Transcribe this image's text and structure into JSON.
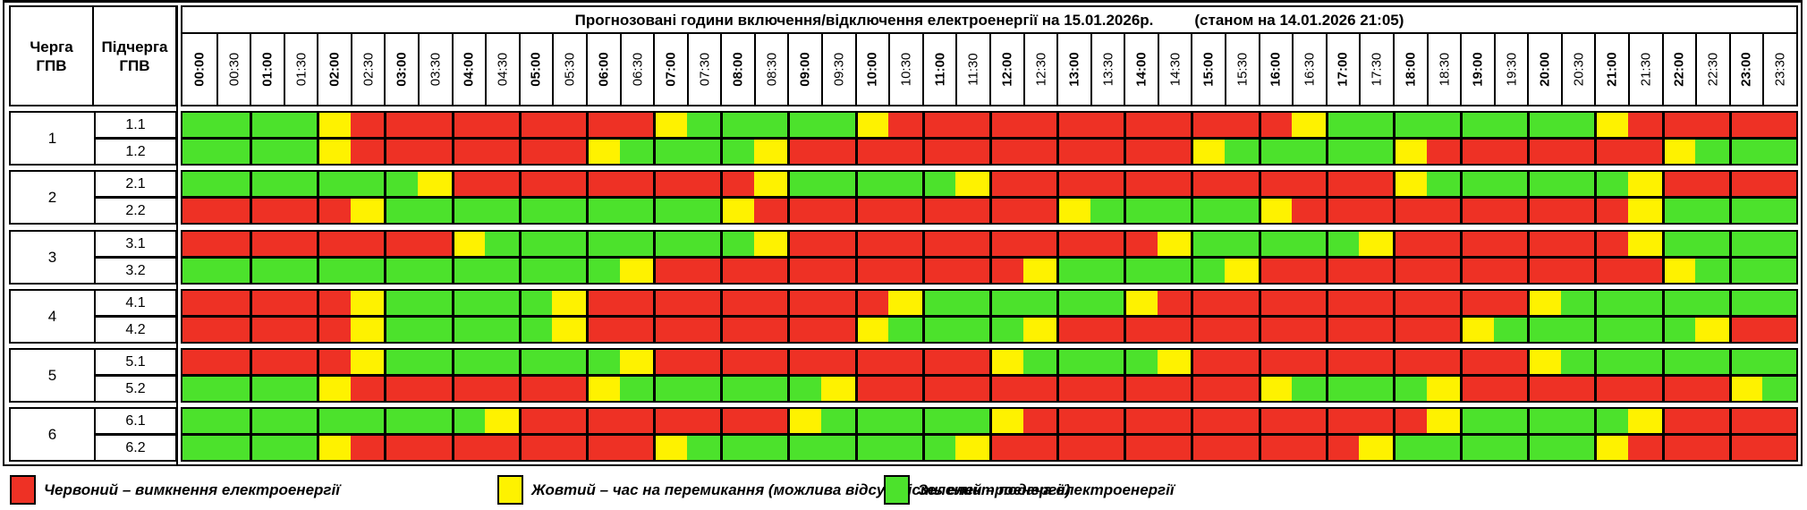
{
  "header": {
    "title": "Прогнозовані години включення/відключення електроенергії на 15.01.2026р.",
    "as_of": "(станом на 14.01.2026 21:05)",
    "queue_col": "Черга\nГПВ",
    "subqueue_col": "Підчерга\nГПВ"
  },
  "times": [
    "00:00",
    "00:30",
    "01:00",
    "01:30",
    "02:00",
    "02:30",
    "03:00",
    "03:30",
    "04:00",
    "04:30",
    "05:00",
    "05:30",
    "06:00",
    "06:30",
    "07:00",
    "07:30",
    "08:00",
    "08:30",
    "09:00",
    "09:30",
    "10:00",
    "10:30",
    "11:00",
    "11:30",
    "12:00",
    "12:30",
    "13:00",
    "13:30",
    "14:00",
    "14:30",
    "15:00",
    "15:30",
    "16:00",
    "16:30",
    "17:00",
    "17:30",
    "18:00",
    "18:30",
    "19:00",
    "19:30",
    "20:00",
    "20:30",
    "21:00",
    "21:30",
    "22:00",
    "22:30",
    "23:00",
    "23:30"
  ],
  "cell_colors": {
    "R": "#ee3125",
    "Y": "#fef200",
    "G": "#4ce22c"
  },
  "groups": [
    {
      "queue": "1",
      "rows": [
        {
          "label": "1.1",
          "cells": "GGGGYRRRRRRRRRYGGGGGYRRRRRRRRRRRRYGGGGGGGGYRRRRR"
        },
        {
          "label": "1.2",
          "cells": "GGGGYRRRRRRRYGGGGYRRRRRRRRRRRRYGGGGGYRRRRRRRYGGG"
        }
      ]
    },
    {
      "queue": "2",
      "rows": [
        {
          "label": "2.1",
          "cells": "GGGGGGGYRRRRRRRRRYGGGGGYRRRRRRRRRRRRYGGGGGGYRRRR"
        },
        {
          "label": "2.2",
          "cells": "RRRRRYGGGGGGGGGGYRRRRRRRRRYGGGGGYRRRRRRRRRRYGGGG"
        }
      ]
    },
    {
      "queue": "3",
      "rows": [
        {
          "label": "3.1",
          "cells": "RRRRRRRRYGGGGGGGGYRRRRRRRRRRRYGGGGGYRRRRRRRYGGGG"
        },
        {
          "label": "3.2",
          "cells": "GGGGGGGGGGGGGYRRRRRRRRRRRYGGGGGYRRRRRRRRRRRRYGGG"
        }
      ]
    },
    {
      "queue": "4",
      "rows": [
        {
          "label": "4.1",
          "cells": "RRRRRYGGGGGYRRRRRRRRRYGGGGGGYRRRRRRRRRRRYGGGGGGG"
        },
        {
          "label": "4.2",
          "cells": "RRRRRYGGGGGYRRRRRRRRYGGGGYRRRRRRRRRRRRYGGGGGGYRR"
        }
      ]
    },
    {
      "queue": "5",
      "rows": [
        {
          "label": "5.1",
          "cells": "RRRRRYGGGGGGGYRRRRRRRRRRYGGGGYRRRRRRRRRRYGGGGGGG"
        },
        {
          "label": "5.2",
          "cells": "GGGGYRRRRRRRYGGGGGGYRRRRRRRRRRRRYGGGGYRRRRRRRRYG"
        }
      ]
    },
    {
      "queue": "6",
      "rows": [
        {
          "label": "6.1",
          "cells": "GGGGGGGGGYRRRRRRRRYGGGGGYRRRRRRRRRRRRYGGGGGYRRRR"
        },
        {
          "label": "6.2",
          "cells": "GGGGYRRRRRRRRRYGGGGGGGGYRRRRRRRRRRRYGGGGGGYRRRRR"
        }
      ]
    }
  ],
  "legend": [
    {
      "key": "R",
      "color": "#ee3125",
      "label": "Червоний – вимкнення електроенергії"
    },
    {
      "key": "Y",
      "color": "#fef200",
      "label": "Жовтий – час на перемикання (можлива відсутність електроенергії)"
    },
    {
      "key": "G",
      "color": "#4ce22c",
      "label": "Зелений – подача електроенергії"
    }
  ],
  "chart_data": {
    "type": "heatmap",
    "title": "Прогнозовані години включення/відключення електроенергії на 15.01.2026р. (станом на 14.01.2026 21:05)",
    "x": [
      "00:00",
      "00:30",
      "01:00",
      "01:30",
      "02:00",
      "02:30",
      "03:00",
      "03:30",
      "04:00",
      "04:30",
      "05:00",
      "05:30",
      "06:00",
      "06:30",
      "07:00",
      "07:30",
      "08:00",
      "08:30",
      "09:00",
      "09:30",
      "10:00",
      "10:30",
      "11:00",
      "11:30",
      "12:00",
      "12:30",
      "13:00",
      "13:30",
      "14:00",
      "14:30",
      "15:00",
      "15:30",
      "16:00",
      "16:30",
      "17:00",
      "17:30",
      "18:00",
      "18:30",
      "19:00",
      "19:30",
      "20:00",
      "20:30",
      "21:00",
      "21:30",
      "22:00",
      "22:30",
      "23:00",
      "23:30"
    ],
    "rows": [
      "1.1",
      "1.2",
      "2.1",
      "2.2",
      "3.1",
      "3.2",
      "4.1",
      "4.2",
      "5.1",
      "5.2",
      "6.1",
      "6.2"
    ],
    "values": [
      "GGGGYRRRRRRRRRYGGGGGYRRRRRRRRRRRRYGGGGGGGGYRRRRR",
      "GGGGYRRRRRRRYGGGGYRRRRRRRRRRRRYGGGGGYRRRRRRRYGGG",
      "GGGGGGGYRRRRRRRRRYGGGGGYRRRRRRRRRRRRYGGGGGGYRRRR",
      "RRRRRYGGGGGGGGGGYRRRRRRRRRYGGGGGYRRRRRRRRRRYGGGG",
      "RRRRRRRRYGGGGGGGGYRRRRRRRRRRRYGGGGGYRRRRRRRYGGGG",
      "GGGGGGGGGGGGGYRRRRRRRRRRRYGGGGGYRRRRRRRRRRRRYGGG",
      "RRRRRYGGGGGYRRRRRRRRRYGGGGGGYRRRRRRRRRRRYGGGGGGG",
      "RRRRRYGGGGGYRRRRRRRRYGGGGYRRRRRRRRRRRRYGGGGGGYRR",
      "RRRRRYGGGGGGGYRRRRRRRRRRYGGGGYRRRRRRRRRRYGGGGGGG",
      "GGGGYRRRRRRRYGGGGGGYRRRRRRRRRRRRYGGGGYRRRRRRRRYG",
      "GGGGGGGGGYRRRRRRRRYGGGGGYRRRRRRRRRRRRYGGGGGYRRRR",
      "GGGGYRRRRRRRRRYGGGGGGGGYRRRRRRRRRRRYGGGGGGYRRRRR"
    ],
    "value_legend": {
      "R": "вимкнення електроенергії",
      "Y": "час на перемикання (можлива відсутність електроенергії)",
      "G": "подача електроенергії"
    },
    "legend_position": "bottom",
    "grid": true
  }
}
